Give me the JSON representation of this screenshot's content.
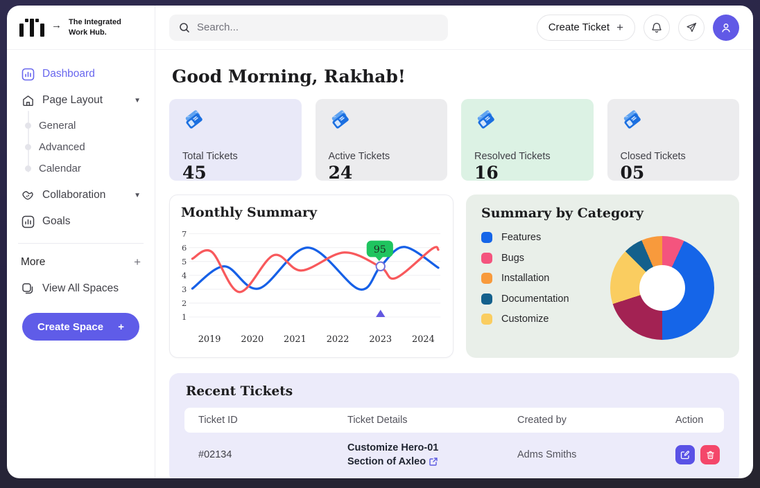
{
  "brand": {
    "line1": "The Integrated",
    "line2": "Work Hub."
  },
  "topbar": {
    "search_placeholder": "Search...",
    "create_ticket_label": "Create Ticket",
    "create_ticket_plus": "+"
  },
  "sidebar": {
    "dashboard": "Dashboard",
    "page_layout": "Page Layout",
    "page_layout_children": [
      "General",
      "Advanced",
      "Calendar"
    ],
    "collaboration": "Collaboration",
    "goals": "Goals",
    "more": "More",
    "more_plus": "+",
    "view_all_spaces": "View All Spaces",
    "create_space_label": "Create Space",
    "create_space_plus": "+"
  },
  "greeting": "Good Morning, Rakhab!",
  "stat_cards": [
    {
      "label": "Total Tickets",
      "value": "45",
      "bg": "#E9E9F8"
    },
    {
      "label": "Active Tickets",
      "value": "24",
      "bg": "#ECECEE"
    },
    {
      "label": "Resolved Tickets",
      "value": "16",
      "bg": "#DCF2E4"
    },
    {
      "label": "Closed Tickets",
      "value": "05",
      "bg": "#ECECEE"
    }
  ],
  "chart_data": [
    {
      "type": "line",
      "title": "Monthly Summary",
      "x_ticks": [
        "2019",
        "2020",
        "2021",
        "2022",
        "2023",
        "2024"
      ],
      "y_ticks": [
        1,
        2,
        3,
        4,
        5,
        6,
        7
      ],
      "ylim": [
        1,
        7
      ],
      "xlim": [
        2018.55,
        2024.4
      ],
      "grid": "horizontal",
      "legend_position": "none",
      "series": [
        {
          "name": "series-blue",
          "color": "#1660E7",
          "points": [
            [
              2018.6,
              3.05
            ],
            [
              2019.35,
              4.65
            ],
            [
              2020.15,
              3.05
            ],
            [
              2021.3,
              6.0
            ],
            [
              2022.5,
              3.0
            ],
            [
              2023.0,
              4.65
            ],
            [
              2023.55,
              6.05
            ],
            [
              2024.35,
              4.55
            ]
          ]
        },
        {
          "name": "series-red",
          "color": "#F8595C",
          "points": [
            [
              2018.6,
              5.2
            ],
            [
              2019.05,
              5.7
            ],
            [
              2019.7,
              2.8
            ],
            [
              2020.5,
              5.45
            ],
            [
              2021.15,
              4.35
            ],
            [
              2022.15,
              5.65
            ],
            [
              2023.0,
              4.6
            ],
            [
              2023.35,
              3.8
            ],
            [
              2024.2,
              5.9
            ],
            [
              2024.35,
              5.85
            ]
          ]
        }
      ],
      "tooltip": {
        "x": 2023.0,
        "y": 4.65,
        "label": "95",
        "bg": "#1FC45F",
        "text_color": "#1d2b22"
      },
      "axis_marker": {
        "x": 2023.0,
        "shape": "triangle-up",
        "color": "#6257E0"
      }
    },
    {
      "type": "pie",
      "title": "Summary by Category",
      "legend": [
        {
          "label": "Features",
          "color": "#1565E8"
        },
        {
          "label": "Bugs",
          "color": "#F4547E"
        },
        {
          "label": "Installation",
          "color": "#F89A3C"
        },
        {
          "label": "Documentation",
          "color": "#14608C"
        },
        {
          "label": "Customize",
          "color": "#FACD60"
        }
      ],
      "slices": [
        {
          "label": "Bugs",
          "color": "#F4547E",
          "percent": 6.9
        },
        {
          "label": "Features",
          "color": "#1565E8",
          "percent": 43.1
        },
        {
          "label": "",
          "color": "#A32253",
          "percent": 20
        },
        {
          "label": "Customize",
          "color": "#FACD60",
          "percent": 17.5
        },
        {
          "label": "Documentation",
          "color": "#14608C",
          "percent": 6
        },
        {
          "label": "Installation",
          "color": "#F89A3C",
          "percent": 6.5
        }
      ],
      "hole": true
    }
  ],
  "recent_tickets": {
    "title": "Recent Tickets",
    "columns": [
      "Ticket ID",
      "Ticket Details",
      "Created by",
      "Action"
    ],
    "rows": [
      {
        "id": "#02134",
        "details_line1": "Customize Hero-01",
        "details_line2": "Section of Axleo",
        "created_by": "Adms Smiths"
      }
    ]
  },
  "colors": {
    "accent": "#5F5CE8",
    "edit_btn": "#5A52E6",
    "delete_btn": "#F4476A"
  }
}
